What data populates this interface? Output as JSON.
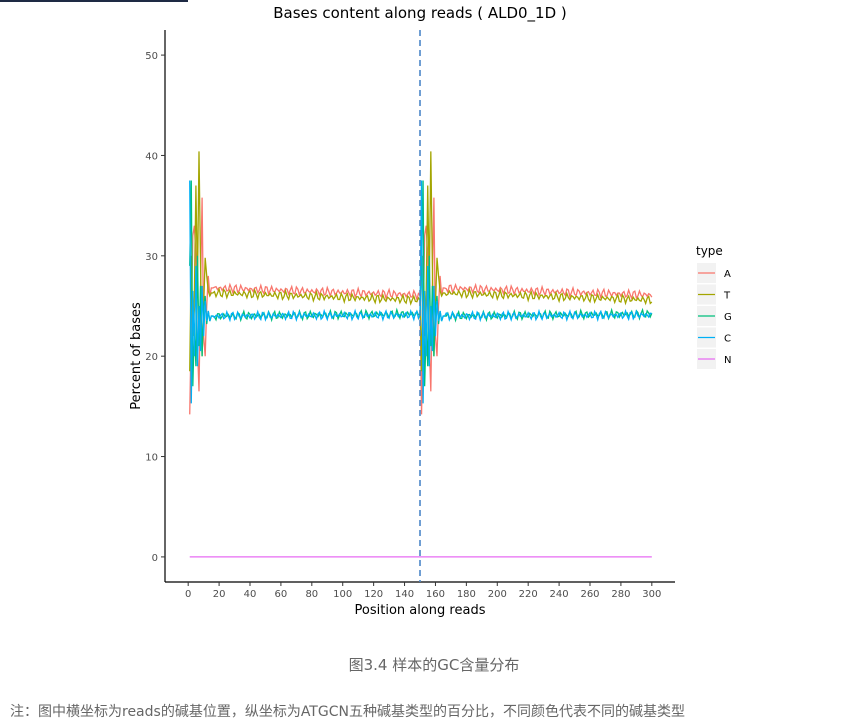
{
  "caption": "图3.4 样本的GC含量分布",
  "note": "注：图中横坐标为reads的碱基位置，纵坐标为ATGCN五种碱基类型的百分比，不同颜色代表不同的碱基类型",
  "chart_data": {
    "type": "line",
    "title": "Bases content along reads ( ALD0_1D )",
    "xlabel": "Position along reads",
    "ylabel": "Percent of bases",
    "xlim": [
      -15,
      315
    ],
    "ylim": [
      -2.5,
      52.5
    ],
    "x_ticks": [
      0,
      20,
      40,
      60,
      80,
      100,
      120,
      140,
      160,
      180,
      200,
      220,
      240,
      260,
      280,
      300
    ],
    "y_ticks": [
      0,
      10,
      20,
      30,
      40,
      50
    ],
    "vline": {
      "x": 150,
      "style": "dashed",
      "color": "#4a86c8"
    },
    "legend": {
      "title": "type",
      "position": "right"
    },
    "grid": false,
    "series": [
      {
        "name": "A",
        "color": "#F8766D",
        "steady": 26.1,
        "keypoints": [
          [
            1,
            14.2
          ],
          [
            2,
            23
          ],
          [
            3,
            32
          ],
          [
            4,
            33
          ],
          [
            5,
            30
          ],
          [
            6,
            21
          ],
          [
            7,
            16.5
          ],
          [
            8,
            27
          ],
          [
            9,
            35.8
          ],
          [
            10,
            22
          ],
          [
            11,
            20
          ],
          [
            12,
            25
          ],
          [
            13,
            28
          ],
          [
            14,
            26
          ],
          [
            15,
            26.8
          ],
          [
            150,
            26.1
          ],
          [
            151,
            14.2
          ],
          [
            152,
            23
          ],
          [
            153,
            32
          ],
          [
            154,
            33
          ],
          [
            155,
            30
          ],
          [
            156,
            21
          ],
          [
            157,
            16.5
          ],
          [
            158,
            27
          ],
          [
            159,
            35.8
          ],
          [
            160,
            22
          ],
          [
            161,
            20
          ],
          [
            162,
            25
          ],
          [
            163,
            28
          ],
          [
            164,
            26
          ],
          [
            165,
            26.8
          ],
          [
            300,
            26.1
          ]
        ]
      },
      {
        "name": "T",
        "color": "#A3A500",
        "steady": 25.6,
        "keypoints": [
          [
            1,
            18.5
          ],
          [
            2,
            30
          ],
          [
            3,
            22
          ],
          [
            4,
            26
          ],
          [
            5,
            37
          ],
          [
            6,
            27
          ],
          [
            7,
            40.4
          ],
          [
            8,
            29
          ],
          [
            9,
            20
          ],
          [
            10,
            25
          ],
          [
            11,
            29.8
          ],
          [
            12,
            28
          ],
          [
            13,
            26.5
          ],
          [
            14,
            26
          ],
          [
            15,
            26.3
          ],
          [
            150,
            25.6
          ],
          [
            151,
            18.5
          ],
          [
            152,
            30
          ],
          [
            153,
            22
          ],
          [
            154,
            26
          ],
          [
            155,
            37
          ],
          [
            156,
            27
          ],
          [
            157,
            40.4
          ],
          [
            158,
            29
          ],
          [
            159,
            20
          ],
          [
            160,
            25
          ],
          [
            161,
            29.8
          ],
          [
            162,
            28
          ],
          [
            163,
            26.5
          ],
          [
            164,
            26
          ],
          [
            165,
            26.3
          ],
          [
            300,
            25.6
          ]
        ]
      },
      {
        "name": "G",
        "color": "#00BF7D",
        "steady": 24.1,
        "keypoints": [
          [
            1,
            29
          ],
          [
            2,
            37.5
          ],
          [
            3,
            17
          ],
          [
            4,
            23
          ],
          [
            5,
            19
          ],
          [
            6,
            30
          ],
          [
            7,
            21
          ],
          [
            8,
            27
          ],
          [
            9,
            20
          ],
          [
            10,
            25
          ],
          [
            11,
            26
          ],
          [
            12,
            23.2
          ],
          [
            13,
            24.5
          ],
          [
            14,
            23.5
          ],
          [
            15,
            24
          ],
          [
            150,
            24.2
          ],
          [
            151,
            29
          ],
          [
            152,
            37.5
          ],
          [
            153,
            17
          ],
          [
            154,
            23
          ],
          [
            155,
            19
          ],
          [
            156,
            30
          ],
          [
            157,
            21
          ],
          [
            158,
            27
          ],
          [
            159,
            20
          ],
          [
            160,
            25
          ],
          [
            161,
            26
          ],
          [
            162,
            23.2
          ],
          [
            163,
            24.5
          ],
          [
            164,
            23.5
          ],
          [
            165,
            24
          ],
          [
            300,
            24.2
          ]
        ]
      },
      {
        "name": "C",
        "color": "#00B0F6",
        "steady": 24.0,
        "keypoints": [
          [
            1,
            37.5
          ],
          [
            2,
            15.3
          ],
          [
            3,
            26.5
          ],
          [
            4,
            20
          ],
          [
            5,
            29
          ],
          [
            6,
            19
          ],
          [
            7,
            25
          ],
          [
            8,
            20.5
          ],
          [
            9,
            27
          ],
          [
            10,
            22
          ],
          [
            11,
            25.5
          ],
          [
            12,
            23.5
          ],
          [
            13,
            24.5
          ],
          [
            14,
            23.5
          ],
          [
            15,
            24
          ],
          [
            150,
            24.1
          ],
          [
            151,
            37.5
          ],
          [
            152,
            15.3
          ],
          [
            153,
            26.5
          ],
          [
            154,
            20
          ],
          [
            155,
            29
          ],
          [
            156,
            19
          ],
          [
            157,
            25
          ],
          [
            158,
            20.5
          ],
          [
            159,
            27
          ],
          [
            160,
            22
          ],
          [
            161,
            25.5
          ],
          [
            162,
            23.5
          ],
          [
            163,
            24.5
          ],
          [
            164,
            23.5
          ],
          [
            165,
            24
          ],
          [
            300,
            24.1
          ]
        ]
      },
      {
        "name": "N",
        "color": "#E76BF3",
        "steady": 0,
        "keypoints": [
          [
            1,
            0
          ],
          [
            300,
            0
          ]
        ]
      }
    ]
  }
}
